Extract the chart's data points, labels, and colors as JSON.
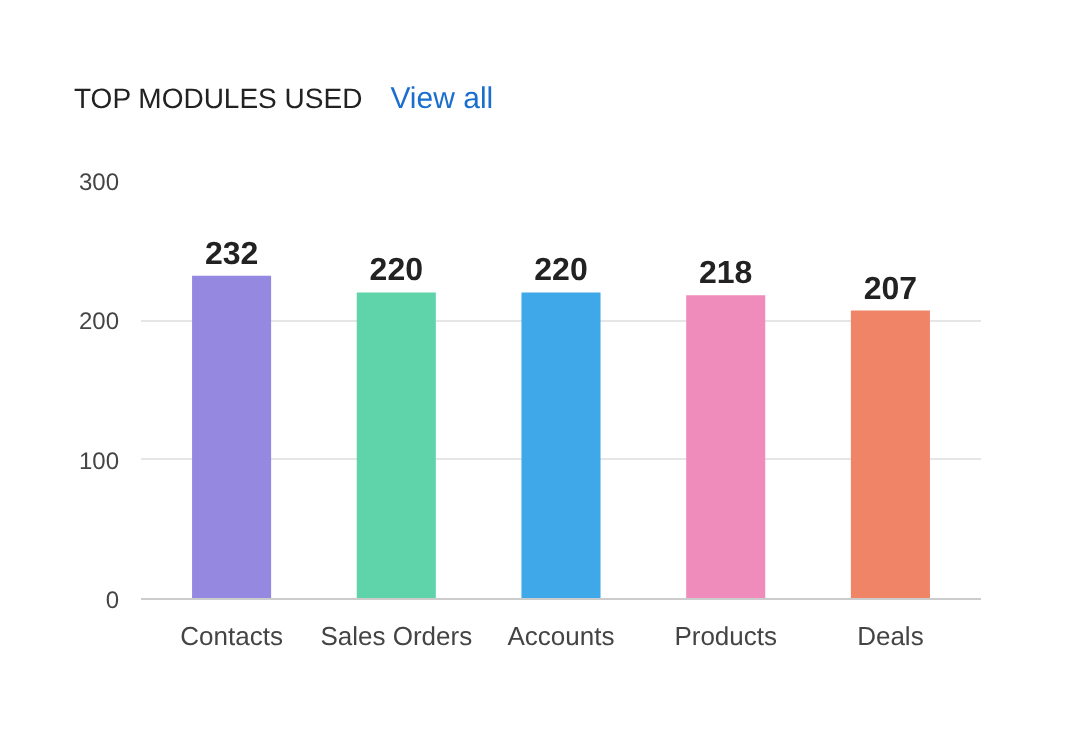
{
  "chart_data": {
    "type": "bar",
    "title": "TOP MODULES USED",
    "annotations": [
      "View all"
    ],
    "categories": [
      "Contacts",
      "Sales Orders",
      "Accounts",
      "Products",
      "Deals"
    ],
    "values": [
      232,
      220,
      220,
      218,
      207
    ],
    "colors": [
      "#9488e0",
      "#5fd3aa",
      "#3ea8e8",
      "#f08cbb",
      "#f08466"
    ],
    "ylim": [
      0,
      300
    ],
    "yticks": [
      0,
      100,
      200,
      300
    ],
    "grid": "y",
    "data_labels": true
  }
}
